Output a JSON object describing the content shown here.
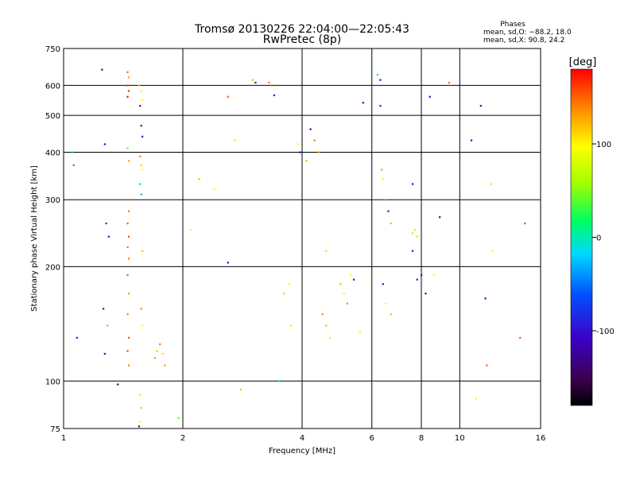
{
  "chart_data": {
    "type": "scatter",
    "title": "Tromsø 20130226 22:04:00—22:05:43",
    "subtitle": "RwPretec (8p)",
    "phase_box": {
      "heading": "Phases",
      "line1": "mean, sd,O: −88.2, 18.0",
      "line2": "mean, sd,X:  90.8, 24.2"
    },
    "xlabel": "Frequency [MHz]",
    "ylabel": "Stationary phase Virtual Height [km]",
    "xscale": "log",
    "yscale": "log",
    "xlim": [
      1,
      16
    ],
    "ylim": [
      75,
      750
    ],
    "xticks": [
      1,
      2,
      4,
      6,
      8,
      10,
      16
    ],
    "yticks": [
      75,
      100,
      200,
      300,
      400,
      500,
      600,
      750
    ],
    "grid": true,
    "colorbar": {
      "label": "[deg]",
      "range": [
        -180,
        180
      ],
      "ticks": [
        100,
        0,
        -100
      ]
    },
    "series": [
      {
        "color_encoding": "phase_deg",
        "points": [
          [
            1.05,
            400,
            -20
          ],
          [
            1.06,
            370,
            -40
          ],
          [
            1.08,
            130,
            -100
          ],
          [
            1.25,
            660,
            -140
          ],
          [
            1.27,
            420,
            -110
          ],
          [
            1.28,
            260,
            -80
          ],
          [
            1.3,
            240,
            -100
          ],
          [
            1.26,
            155,
            -100
          ],
          [
            1.29,
            140,
            30
          ],
          [
            1.27,
            118,
            -110
          ],
          [
            1.37,
            98,
            -130
          ],
          [
            1.45,
            650,
            150
          ],
          [
            1.46,
            630,
            130
          ],
          [
            1.45,
            600,
            160
          ],
          [
            1.46,
            580,
            165
          ],
          [
            1.45,
            560,
            180
          ],
          [
            1.45,
            410,
            40
          ],
          [
            1.46,
            380,
            130
          ],
          [
            1.45,
            300,
            150
          ],
          [
            1.46,
            280,
            140
          ],
          [
            1.45,
            260,
            150
          ],
          [
            1.46,
            240,
            160
          ],
          [
            1.45,
            225,
            145
          ],
          [
            1.46,
            210,
            140
          ],
          [
            1.45,
            190,
            150
          ],
          [
            1.46,
            170,
            130
          ],
          [
            1.45,
            150,
            140
          ],
          [
            1.46,
            130,
            155
          ],
          [
            1.45,
            120,
            160
          ],
          [
            1.46,
            110,
            140
          ],
          [
            1.55,
            600,
            120
          ],
          [
            1.57,
            580,
            100
          ],
          [
            1.58,
            550,
            90
          ],
          [
            1.56,
            530,
            -120
          ],
          [
            1.57,
            470,
            -110
          ],
          [
            1.58,
            440,
            -100
          ],
          [
            1.56,
            390,
            140
          ],
          [
            1.57,
            370,
            110
          ],
          [
            1.58,
            360,
            100
          ],
          [
            1.56,
            330,
            -20
          ],
          [
            1.57,
            310,
            -30
          ],
          [
            1.58,
            220,
            120
          ],
          [
            1.57,
            155,
            140
          ],
          [
            1.58,
            140,
            100
          ],
          [
            1.56,
            92,
            110
          ],
          [
            1.57,
            85,
            120
          ],
          [
            1.56,
            78,
            100
          ],
          [
            1.55,
            76,
            -120
          ],
          [
            1.7,
            115,
            130
          ],
          [
            1.72,
            120,
            120
          ],
          [
            1.75,
            125,
            140
          ],
          [
            1.78,
            118,
            110
          ],
          [
            1.8,
            110,
            130
          ],
          [
            1.95,
            80,
            40
          ],
          [
            2.1,
            250,
            100
          ],
          [
            2.2,
            340,
            120
          ],
          [
            2.4,
            320,
            90
          ],
          [
            2.6,
            205,
            -100
          ],
          [
            2.6,
            560,
            150
          ],
          [
            2.7,
            430,
            110
          ],
          [
            2.8,
            95,
            120
          ],
          [
            3.0,
            620,
            120
          ],
          [
            3.05,
            610,
            -110
          ],
          [
            3.3,
            610,
            140
          ],
          [
            3.35,
            600,
            150
          ],
          [
            3.4,
            565,
            -100
          ],
          [
            3.5,
            100,
            -20
          ],
          [
            3.6,
            170,
            60
          ],
          [
            3.7,
            180,
            100
          ],
          [
            3.75,
            140,
            80
          ],
          [
            3.9,
            420,
            90
          ],
          [
            3.95,
            400,
            -110
          ],
          [
            4.1,
            380,
            120
          ],
          [
            4.2,
            460,
            -130
          ],
          [
            4.3,
            430,
            140
          ],
          [
            4.4,
            400,
            130
          ],
          [
            4.5,
            150,
            140
          ],
          [
            4.6,
            140,
            120
          ],
          [
            4.7,
            130,
            100
          ],
          [
            4.6,
            220,
            60
          ],
          [
            5.0,
            180,
            120
          ],
          [
            5.1,
            170,
            100
          ],
          [
            5.2,
            160,
            140
          ],
          [
            5.3,
            190,
            90
          ],
          [
            5.4,
            185,
            -100
          ],
          [
            5.6,
            135,
            100
          ],
          [
            5.7,
            540,
            -110
          ],
          [
            6.2,
            640,
            -20
          ],
          [
            6.3,
            620,
            -110
          ],
          [
            6.3,
            530,
            -100
          ],
          [
            6.35,
            360,
            130
          ],
          [
            6.4,
            340,
            100
          ],
          [
            6.5,
            300,
            140
          ],
          [
            6.6,
            280,
            -100
          ],
          [
            6.7,
            260,
            120
          ],
          [
            6.4,
            180,
            -100
          ],
          [
            6.5,
            160,
            100
          ],
          [
            6.7,
            150,
            120
          ],
          [
            7.6,
            330,
            -110
          ],
          [
            7.6,
            220,
            -100
          ],
          [
            7.6,
            245,
            60
          ],
          [
            7.7,
            250,
            70
          ],
          [
            7.8,
            240,
            60
          ],
          [
            7.8,
            185,
            -110
          ],
          [
            8.0,
            190,
            -100
          ],
          [
            8.2,
            170,
            -100
          ],
          [
            8.4,
            560,
            -110
          ],
          [
            8.6,
            190,
            100
          ],
          [
            8.9,
            270,
            -110
          ],
          [
            9.4,
            610,
            150
          ],
          [
            10.7,
            430,
            -110
          ],
          [
            11.0,
            90,
            100
          ],
          [
            11.3,
            530,
            -110
          ],
          [
            11.6,
            165,
            -110
          ],
          [
            11.7,
            110,
            150
          ],
          [
            12.0,
            330,
            110
          ],
          [
            12.1,
            220,
            90
          ],
          [
            14.2,
            130,
            150
          ],
          [
            14.6,
            260,
            -40
          ]
        ]
      }
    ]
  }
}
